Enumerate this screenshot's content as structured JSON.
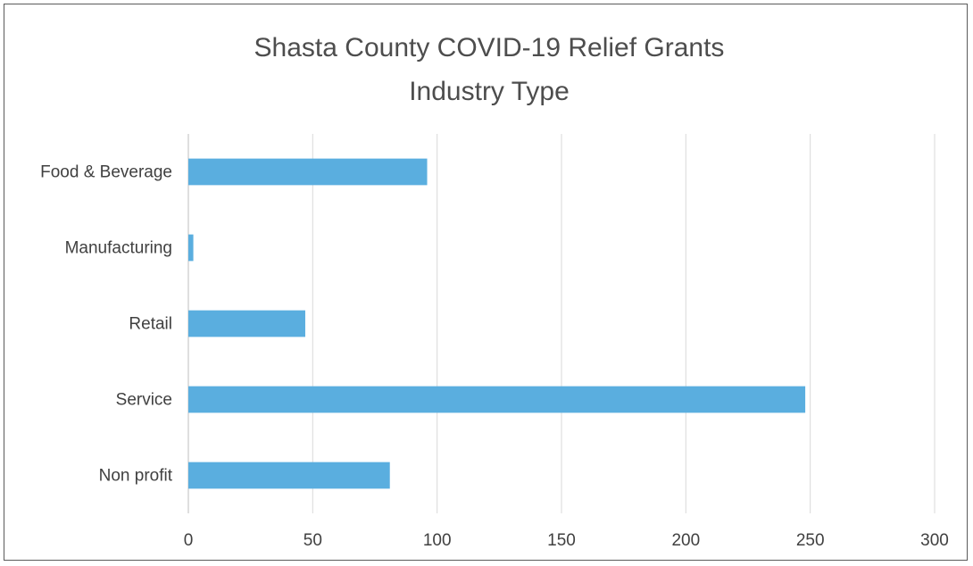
{
  "chart_data": {
    "type": "bar",
    "orientation": "horizontal",
    "title": "Shasta County COVID-19 Relief Grants",
    "subtitle": "Industry Type",
    "categories": [
      "Food & Beverage",
      "Manufacturing",
      "Retail",
      "Service",
      "Non profit"
    ],
    "values": [
      96,
      2,
      47,
      248,
      81
    ],
    "xlim": [
      0,
      300
    ],
    "xticks": [
      0,
      50,
      100,
      150,
      200,
      250,
      300
    ],
    "xlabel": "",
    "ylabel": "",
    "grid": true,
    "legend": "none",
    "bar_color": "#5aaedf"
  }
}
